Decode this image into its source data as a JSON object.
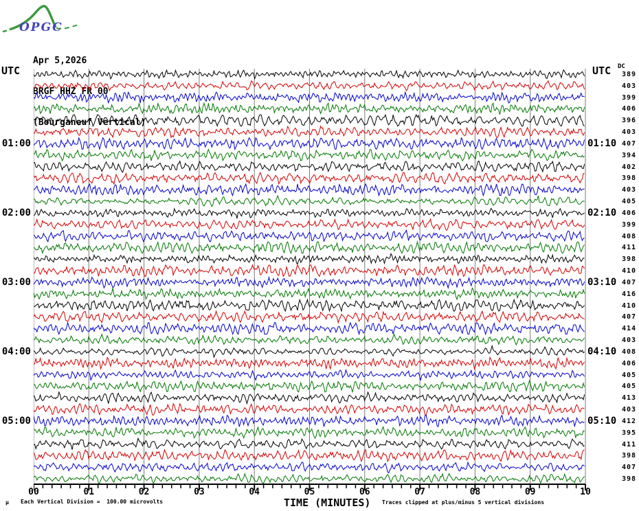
{
  "logo": {
    "text": "OPGC",
    "curve_color": "#3d9a3d",
    "text_color": "#4444bb"
  },
  "header": {
    "date": "Apr 5,2026",
    "station": "BRGF HHZ FR 00",
    "description": "(Bourganeuf Vertical)"
  },
  "left_axis_header": "UTC",
  "right_axis_header": "UTC",
  "dc_column_header": "DC",
  "x_axis": {
    "title": "TIME (MINUTES)",
    "tick_labels": [
      "00",
      "01",
      "02",
      "03",
      "04",
      "05",
      "06",
      "07",
      "08",
      "09",
      "10"
    ],
    "minor_divisions_per_minute": 6
  },
  "footer": {
    "micro_mark": "µ",
    "scale_note": "Each Vertical Division =  100.00 microvolts",
    "clip_note": "Traces clipped at plus/minus 5 vertical divisions"
  },
  "chart_data": {
    "type": "line",
    "subtype": "helicorder-seismogram",
    "station": "BRGF HHZ FR 00",
    "minutes_per_line": 10,
    "x_range_minutes": [
      0,
      10
    ],
    "grid": "vertical lines each minute",
    "grid_color": "#7a7a7a",
    "trace_color_cycle": [
      "#000000",
      "#d40000",
      "#0000cc",
      "#007700"
    ],
    "clip_divisions": 5,
    "microvolts_per_division": 100.0,
    "rows": [
      {
        "start": "00:00",
        "left_label": "",
        "right_label": "",
        "dc": 389,
        "color": "#000000"
      },
      {
        "start": "00:10",
        "left_label": "",
        "right_label": "",
        "dc": 403,
        "color": "#d40000"
      },
      {
        "start": "00:20",
        "left_label": "",
        "right_label": "",
        "dc": 399,
        "color": "#0000cc"
      },
      {
        "start": "00:30",
        "left_label": "",
        "right_label": "",
        "dc": 406,
        "color": "#007700"
      },
      {
        "start": "00:40",
        "left_label": "",
        "right_label": "",
        "dc": 396,
        "color": "#000000"
      },
      {
        "start": "00:50",
        "left_label": "",
        "right_label": "",
        "dc": 403,
        "color": "#d40000"
      },
      {
        "start": "01:00",
        "left_label": "01:00",
        "right_label": "01:10",
        "dc": 407,
        "color": "#0000cc"
      },
      {
        "start": "01:10",
        "left_label": "",
        "right_label": "",
        "dc": 394,
        "color": "#007700"
      },
      {
        "start": "01:20",
        "left_label": "",
        "right_label": "",
        "dc": 402,
        "color": "#000000"
      },
      {
        "start": "01:30",
        "left_label": "",
        "right_label": "",
        "dc": 398,
        "color": "#d40000"
      },
      {
        "start": "01:40",
        "left_label": "",
        "right_label": "",
        "dc": 403,
        "color": "#0000cc"
      },
      {
        "start": "01:50",
        "left_label": "",
        "right_label": "",
        "dc": 405,
        "color": "#007700"
      },
      {
        "start": "02:00",
        "left_label": "02:00",
        "right_label": "02:10",
        "dc": 406,
        "color": "#000000"
      },
      {
        "start": "02:10",
        "left_label": "",
        "right_label": "",
        "dc": 399,
        "color": "#d40000"
      },
      {
        "start": "02:20",
        "left_label": "",
        "right_label": "",
        "dc": 408,
        "color": "#0000cc"
      },
      {
        "start": "02:30",
        "left_label": "",
        "right_label": "",
        "dc": 411,
        "color": "#007700"
      },
      {
        "start": "02:40",
        "left_label": "",
        "right_label": "",
        "dc": 398,
        "color": "#000000"
      },
      {
        "start": "02:50",
        "left_label": "",
        "right_label": "",
        "dc": 410,
        "color": "#d40000"
      },
      {
        "start": "03:00",
        "left_label": "03:00",
        "right_label": "03:10",
        "dc": 407,
        "color": "#0000cc"
      },
      {
        "start": "03:10",
        "left_label": "",
        "right_label": "",
        "dc": 416,
        "color": "#007700"
      },
      {
        "start": "03:20",
        "left_label": "",
        "right_label": "",
        "dc": 410,
        "color": "#000000"
      },
      {
        "start": "03:30",
        "left_label": "",
        "right_label": "",
        "dc": 407,
        "color": "#d40000"
      },
      {
        "start": "03:40",
        "left_label": "",
        "right_label": "",
        "dc": 414,
        "color": "#0000cc"
      },
      {
        "start": "03:50",
        "left_label": "",
        "right_label": "",
        "dc": 403,
        "color": "#007700"
      },
      {
        "start": "04:00",
        "left_label": "04:00",
        "right_label": "04:10",
        "dc": 408,
        "color": "#000000"
      },
      {
        "start": "04:10",
        "left_label": "",
        "right_label": "",
        "dc": 406,
        "color": "#d40000"
      },
      {
        "start": "04:20",
        "left_label": "",
        "right_label": "",
        "dc": 405,
        "color": "#0000cc"
      },
      {
        "start": "04:30",
        "left_label": "",
        "right_label": "",
        "dc": 405,
        "color": "#007700"
      },
      {
        "start": "04:40",
        "left_label": "",
        "right_label": "",
        "dc": 413,
        "color": "#000000"
      },
      {
        "start": "04:50",
        "left_label": "",
        "right_label": "",
        "dc": 403,
        "color": "#d40000"
      },
      {
        "start": "05:00",
        "left_label": "05:00",
        "right_label": "05:10",
        "dc": 412,
        "color": "#0000cc"
      },
      {
        "start": "05:10",
        "left_label": "",
        "right_label": "",
        "dc": 395,
        "color": "#007700"
      },
      {
        "start": "05:20",
        "left_label": "",
        "right_label": "",
        "dc": 411,
        "color": "#000000"
      },
      {
        "start": "05:30",
        "left_label": "",
        "right_label": "",
        "dc": 398,
        "color": "#d40000"
      },
      {
        "start": "05:40",
        "left_label": "",
        "right_label": "",
        "dc": 407,
        "color": "#0000cc"
      },
      {
        "start": "05:50",
        "left_label": "",
        "right_label": "",
        "dc": 398,
        "color": "#007700"
      }
    ]
  }
}
